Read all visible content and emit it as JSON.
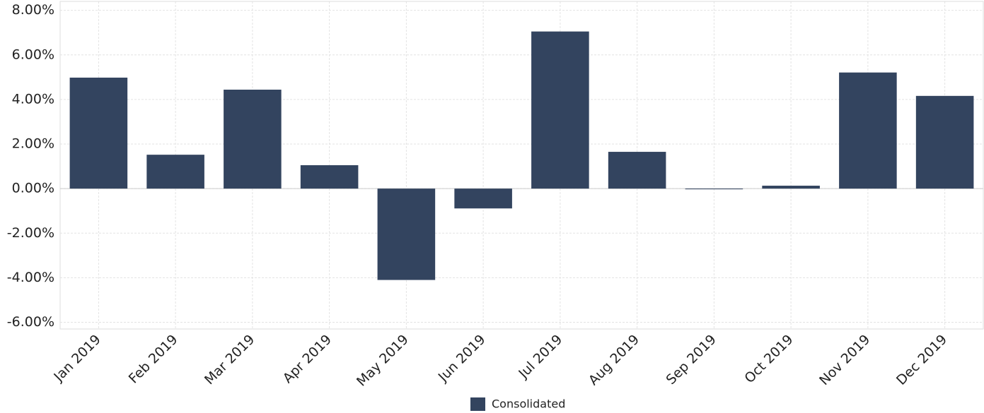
{
  "chart_data": {
    "type": "bar",
    "categories": [
      "Jan 2019",
      "Feb 2019",
      "Mar 2019",
      "Apr 2019",
      "May 2019",
      "Jun 2019",
      "Jul 2019",
      "Aug 2019",
      "Sep 2019",
      "Oct 2019",
      "Nov 2019",
      "Dec 2019"
    ],
    "series": [
      {
        "name": "Consolidated",
        "color": "#33445f",
        "values": [
          4.98,
          1.52,
          4.44,
          1.05,
          -4.1,
          -0.89,
          7.05,
          1.65,
          -0.03,
          0.13,
          5.21,
          4.16
        ]
      }
    ],
    "ylim": [
      -6.3,
      8.4
    ],
    "yticks": [
      {
        "value": -6,
        "label": "-6.00%"
      },
      {
        "value": -4,
        "label": "-4.00%"
      },
      {
        "value": -2,
        "label": "-2.00%"
      },
      {
        "value": 0,
        "label": "0.00%"
      },
      {
        "value": 2,
        "label": "2.00%"
      },
      {
        "value": 4,
        "label": "4.00%"
      },
      {
        "value": 6,
        "label": "6.00%"
      },
      {
        "value": 8,
        "label": "8.00%"
      }
    ],
    "grid": true,
    "legend": "bottom"
  }
}
